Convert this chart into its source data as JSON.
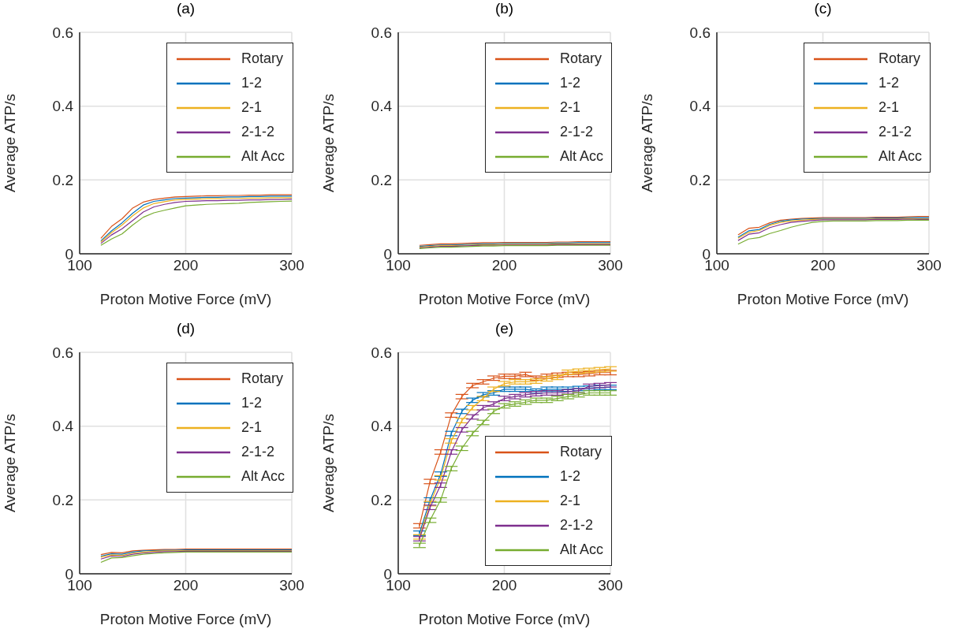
{
  "chart_data": [
    {
      "type": "line",
      "title": "(a)",
      "xlabel": "Proton Motive Force (mV)",
      "ylabel": "Average ATP/s",
      "x": [
        120,
        130,
        140,
        150,
        160,
        170,
        180,
        190,
        200,
        210,
        220,
        230,
        240,
        250,
        260,
        270,
        280,
        290,
        300
      ],
      "xlim": [
        100,
        300
      ],
      "xticks": [
        100,
        200,
        300
      ],
      "ylim": [
        0,
        0.6
      ],
      "yticks": [
        0,
        0.2,
        0.4,
        0.6
      ],
      "grid": true,
      "legend": "top right",
      "series": [
        {
          "name": "Rotary",
          "color": "#d95319",
          "values": [
            0.042,
            0.074,
            0.095,
            0.124,
            0.14,
            0.147,
            0.151,
            0.154,
            0.155,
            0.156,
            0.157,
            0.157,
            0.158,
            0.158,
            0.159,
            0.159,
            0.16,
            0.16,
            0.16
          ]
        },
        {
          "name": "1-2",
          "color": "#0072bd",
          "values": [
            0.035,
            0.062,
            0.084,
            0.11,
            0.132,
            0.142,
            0.146,
            0.15,
            0.151,
            0.152,
            0.153,
            0.153,
            0.154,
            0.154,
            0.155,
            0.155,
            0.156,
            0.156,
            0.156
          ]
        },
        {
          "name": "2-1",
          "color": "#edb120",
          "values": [
            0.032,
            0.057,
            0.078,
            0.103,
            0.124,
            0.136,
            0.141,
            0.146,
            0.147,
            0.148,
            0.149,
            0.149,
            0.15,
            0.15,
            0.151,
            0.151,
            0.152,
            0.152,
            0.152
          ]
        },
        {
          "name": "2-1-2",
          "color": "#7e2f8e",
          "values": [
            0.028,
            0.051,
            0.068,
            0.09,
            0.113,
            0.127,
            0.134,
            0.139,
            0.142,
            0.143,
            0.144,
            0.144,
            0.145,
            0.145,
            0.146,
            0.146,
            0.147,
            0.147,
            0.148
          ]
        },
        {
          "name": "Alt Acc",
          "color": "#77ac30",
          "values": [
            0.023,
            0.04,
            0.054,
            0.078,
            0.099,
            0.111,
            0.118,
            0.124,
            0.13,
            0.132,
            0.134,
            0.135,
            0.136,
            0.137,
            0.139,
            0.14,
            0.141,
            0.142,
            0.143
          ]
        }
      ]
    },
    {
      "type": "line",
      "title": "(b)",
      "xlabel": "Proton Motive Force (mV)",
      "ylabel": "Average ATP/s",
      "x": [
        120,
        130,
        140,
        150,
        160,
        170,
        180,
        190,
        200,
        210,
        220,
        230,
        240,
        250,
        260,
        270,
        280,
        290,
        300
      ],
      "xlim": [
        100,
        300
      ],
      "xticks": [
        100,
        200,
        300
      ],
      "ylim": [
        0,
        0.6
      ],
      "yticks": [
        0,
        0.2,
        0.4,
        0.6
      ],
      "grid": true,
      "legend": "top right",
      "series": [
        {
          "name": "Rotary",
          "color": "#d95319",
          "values": [
            0.023,
            0.025,
            0.027,
            0.027,
            0.028,
            0.029,
            0.03,
            0.03,
            0.031,
            0.031,
            0.031,
            0.031,
            0.031,
            0.032,
            0.032,
            0.033,
            0.033,
            0.033,
            0.033
          ]
        },
        {
          "name": "1-2",
          "color": "#0072bd",
          "values": [
            0.02,
            0.022,
            0.024,
            0.024,
            0.025,
            0.026,
            0.027,
            0.027,
            0.028,
            0.028,
            0.028,
            0.028,
            0.028,
            0.029,
            0.029,
            0.03,
            0.03,
            0.03,
            0.03
          ]
        },
        {
          "name": "2-1",
          "color": "#edb120",
          "values": [
            0.018,
            0.02,
            0.022,
            0.022,
            0.023,
            0.024,
            0.025,
            0.025,
            0.026,
            0.026,
            0.026,
            0.026,
            0.026,
            0.027,
            0.027,
            0.027,
            0.027,
            0.027,
            0.027
          ]
        },
        {
          "name": "2-1-2",
          "color": "#7e2f8e",
          "values": [
            0.016,
            0.018,
            0.02,
            0.02,
            0.021,
            0.022,
            0.023,
            0.023,
            0.024,
            0.024,
            0.024,
            0.024,
            0.024,
            0.025,
            0.025,
            0.025,
            0.025,
            0.025,
            0.025
          ]
        },
        {
          "name": "Alt Acc",
          "color": "#77ac30",
          "values": [
            0.014,
            0.016,
            0.018,
            0.018,
            0.019,
            0.02,
            0.021,
            0.021,
            0.022,
            0.022,
            0.022,
            0.022,
            0.022,
            0.023,
            0.023,
            0.023,
            0.023,
            0.023,
            0.023
          ]
        }
      ]
    },
    {
      "type": "line",
      "title": "(c)",
      "xlabel": "Proton Motive Force (mV)",
      "ylabel": "Average ATP/s",
      "x": [
        120,
        130,
        140,
        150,
        160,
        170,
        180,
        190,
        200,
        210,
        220,
        230,
        240,
        250,
        260,
        270,
        280,
        290,
        300
      ],
      "xlim": [
        100,
        300
      ],
      "xticks": [
        100,
        200,
        300
      ],
      "ylim": [
        0,
        0.6
      ],
      "yticks": [
        0,
        0.2,
        0.4,
        0.6
      ],
      "grid": true,
      "legend": "top right",
      "series": [
        {
          "name": "Rotary",
          "color": "#d95319",
          "values": [
            0.051,
            0.069,
            0.072,
            0.084,
            0.091,
            0.094,
            0.096,
            0.097,
            0.098,
            0.098,
            0.098,
            0.098,
            0.098,
            0.099,
            0.099,
            0.099,
            0.1,
            0.101,
            0.101
          ]
        },
        {
          "name": "1-2",
          "color": "#0072bd",
          "values": [
            0.045,
            0.062,
            0.066,
            0.08,
            0.088,
            0.092,
            0.094,
            0.095,
            0.096,
            0.096,
            0.096,
            0.096,
            0.096,
            0.097,
            0.097,
            0.097,
            0.098,
            0.098,
            0.098
          ]
        },
        {
          "name": "2-1",
          "color": "#edb120",
          "values": [
            0.042,
            0.058,
            0.063,
            0.077,
            0.085,
            0.089,
            0.091,
            0.093,
            0.094,
            0.094,
            0.094,
            0.094,
            0.094,
            0.095,
            0.095,
            0.095,
            0.096,
            0.095,
            0.095
          ]
        },
        {
          "name": "2-1-2",
          "color": "#7e2f8e",
          "values": [
            0.036,
            0.053,
            0.057,
            0.071,
            0.079,
            0.085,
            0.088,
            0.09,
            0.092,
            0.092,
            0.092,
            0.092,
            0.092,
            0.093,
            0.093,
            0.093,
            0.094,
            0.093,
            0.093
          ]
        },
        {
          "name": "Alt Acc",
          "color": "#77ac30",
          "values": [
            0.026,
            0.04,
            0.044,
            0.055,
            0.063,
            0.072,
            0.079,
            0.085,
            0.088,
            0.089,
            0.089,
            0.089,
            0.089,
            0.09,
            0.09,
            0.09,
            0.091,
            0.091,
            0.091
          ]
        }
      ]
    },
    {
      "type": "line",
      "title": "(d)",
      "xlabel": "Proton Motive Force (mV)",
      "ylabel": "Average ATP/s",
      "x": [
        120,
        130,
        140,
        150,
        160,
        170,
        180,
        190,
        200,
        210,
        220,
        230,
        240,
        250,
        260,
        270,
        280,
        290,
        300
      ],
      "xlim": [
        100,
        300
      ],
      "xticks": [
        100,
        200,
        300
      ],
      "ylim": [
        0,
        0.6
      ],
      "yticks": [
        0,
        0.2,
        0.4,
        0.6
      ],
      "grid": true,
      "legend": "top right",
      "series": [
        {
          "name": "Rotary",
          "color": "#d95319",
          "values": [
            0.052,
            0.058,
            0.057,
            0.062,
            0.064,
            0.065,
            0.066,
            0.066,
            0.067,
            0.067,
            0.067,
            0.067,
            0.067,
            0.067,
            0.067,
            0.067,
            0.067,
            0.067,
            0.067
          ]
        },
        {
          "name": "1-2",
          "color": "#0072bd",
          "values": [
            0.048,
            0.054,
            0.053,
            0.059,
            0.062,
            0.063,
            0.064,
            0.064,
            0.065,
            0.065,
            0.065,
            0.065,
            0.065,
            0.065,
            0.065,
            0.065,
            0.065,
            0.065,
            0.065
          ]
        },
        {
          "name": "2-1",
          "color": "#edb120",
          "values": [
            0.045,
            0.051,
            0.05,
            0.056,
            0.059,
            0.061,
            0.062,
            0.062,
            0.063,
            0.063,
            0.063,
            0.063,
            0.063,
            0.063,
            0.063,
            0.063,
            0.063,
            0.063,
            0.063
          ]
        },
        {
          "name": "2-1-2",
          "color": "#7e2f8e",
          "values": [
            0.04,
            0.048,
            0.047,
            0.053,
            0.056,
            0.058,
            0.06,
            0.06,
            0.061,
            0.061,
            0.061,
            0.061,
            0.061,
            0.061,
            0.061,
            0.061,
            0.061,
            0.061,
            0.061
          ]
        },
        {
          "name": "Alt Acc",
          "color": "#77ac30",
          "values": [
            0.031,
            0.043,
            0.044,
            0.049,
            0.053,
            0.055,
            0.057,
            0.058,
            0.059,
            0.059,
            0.059,
            0.059,
            0.059,
            0.059,
            0.059,
            0.059,
            0.059,
            0.059,
            0.059
          ]
        }
      ]
    },
    {
      "type": "line",
      "title": "(e)",
      "xlabel": "Proton Motive Force (mV)",
      "ylabel": "Average ATP/s",
      "x": [
        120,
        130,
        140,
        150,
        160,
        170,
        180,
        190,
        200,
        210,
        220,
        230,
        240,
        250,
        260,
        270,
        280,
        290,
        300
      ],
      "xlim": [
        100,
        300
      ],
      "xticks": [
        100,
        200,
        300
      ],
      "ylim": [
        0,
        0.6
      ],
      "yticks": [
        0,
        0.2,
        0.4,
        0.6
      ],
      "grid": true,
      "legend": "bottom right",
      "series": [
        {
          "name": "Rotary",
          "color": "#d95319",
          "values": [
            0.13,
            0.25,
            0.33,
            0.43,
            0.48,
            0.51,
            0.52,
            0.53,
            0.535,
            0.535,
            0.54,
            0.53,
            0.535,
            0.538,
            0.54,
            0.54,
            0.542,
            0.545,
            0.545
          ],
          "errors": [
            0.006,
            0.006,
            0.006,
            0.006,
            0.006,
            0.006,
            0.006,
            0.006,
            0.006,
            0.006,
            0.006,
            0.006,
            0.006,
            0.006,
            0.006,
            0.006,
            0.006,
            0.006,
            0.006
          ]
        },
        {
          "name": "1-2",
          "color": "#0072bd",
          "values": [
            0.11,
            0.2,
            0.27,
            0.38,
            0.44,
            0.47,
            0.485,
            0.49,
            0.5,
            0.5,
            0.5,
            0.495,
            0.5,
            0.5,
            0.5,
            0.502,
            0.503,
            0.505,
            0.505
          ],
          "errors": [
            0.006,
            0.006,
            0.006,
            0.006,
            0.006,
            0.006,
            0.006,
            0.006,
            0.006,
            0.006,
            0.006,
            0.006,
            0.006,
            0.006,
            0.006,
            0.006,
            0.006,
            0.006,
            0.006
          ]
        },
        {
          "name": "2-1",
          "color": "#edb120",
          "values": [
            0.1,
            0.19,
            0.26,
            0.36,
            0.415,
            0.45,
            0.475,
            0.5,
            0.515,
            0.52,
            0.52,
            0.522,
            0.528,
            0.532,
            0.546,
            0.549,
            0.551,
            0.553,
            0.555
          ],
          "errors": [
            0.006,
            0.006,
            0.006,
            0.006,
            0.006,
            0.006,
            0.006,
            0.006,
            0.006,
            0.006,
            0.006,
            0.006,
            0.006,
            0.006,
            0.006,
            0.006,
            0.006,
            0.006,
            0.006
          ]
        },
        {
          "name": "2-1-2",
          "color": "#7e2f8e",
          "values": [
            0.095,
            0.18,
            0.24,
            0.33,
            0.39,
            0.425,
            0.45,
            0.46,
            0.475,
            0.48,
            0.485,
            0.488,
            0.49,
            0.49,
            0.493,
            0.496,
            0.508,
            0.51,
            0.512
          ],
          "errors": [
            0.006,
            0.006,
            0.006,
            0.006,
            0.006,
            0.006,
            0.006,
            0.006,
            0.006,
            0.006,
            0.006,
            0.006,
            0.006,
            0.006,
            0.006,
            0.006,
            0.006,
            0.006,
            0.006
          ]
        },
        {
          "name": "Alt Acc",
          "color": "#77ac30",
          "values": [
            0.077,
            0.145,
            0.2,
            0.285,
            0.34,
            0.38,
            0.41,
            0.44,
            0.455,
            0.46,
            0.465,
            0.47,
            0.47,
            0.475,
            0.48,
            0.485,
            0.49,
            0.49,
            0.49
          ],
          "errors": [
            0.006,
            0.006,
            0.006,
            0.006,
            0.006,
            0.006,
            0.006,
            0.006,
            0.006,
            0.006,
            0.006,
            0.006,
            0.006,
            0.006,
            0.006,
            0.006,
            0.006,
            0.006,
            0.006
          ]
        }
      ]
    }
  ]
}
